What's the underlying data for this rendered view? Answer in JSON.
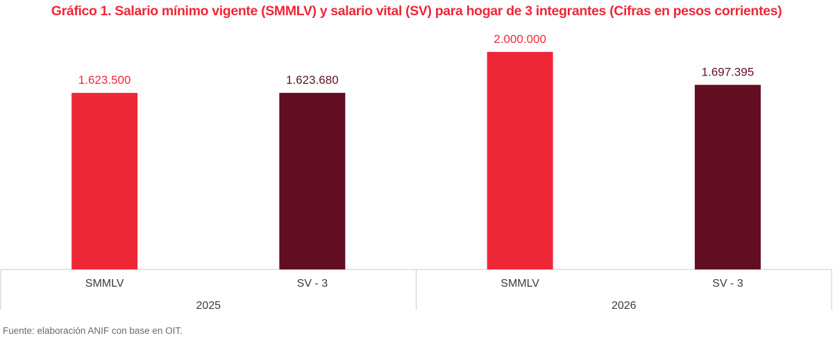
{
  "chart_data": {
    "type": "bar",
    "title": "Gráfico 1. Salario mínimo vigente (SMMLV) y salario vital (SV) para hogar de 3 integrantes (Cifras en pesos corrientes)",
    "xlabel": "",
    "ylabel": "",
    "ylim": [
      0,
      2000000
    ],
    "grid": false,
    "legend": "none",
    "groups": [
      {
        "name": "2025",
        "bars": [
          {
            "category": "SMMLV",
            "value": 1623500,
            "label": "1.623.500",
            "color": "#ee2737"
          },
          {
            "category": "SV - 3",
            "value": 1623680,
            "label": "1.623.680",
            "color": "#620d21"
          }
        ]
      },
      {
        "name": "2026",
        "bars": [
          {
            "category": "SMMLV",
            "value": 2000000,
            "label": "2.000.000",
            "color": "#ee2737"
          },
          {
            "category": "SV - 3",
            "value": 1697395,
            "label": "1.697.395",
            "color": "#620d21"
          }
        ]
      }
    ],
    "source": "Fuente: elaboración ANIF con base en OIT.",
    "colors": {
      "title": "#ee2737",
      "axis": "#c8c8c8",
      "category_text": "#3a3a3a",
      "source_text": "#6b6b6b"
    }
  }
}
